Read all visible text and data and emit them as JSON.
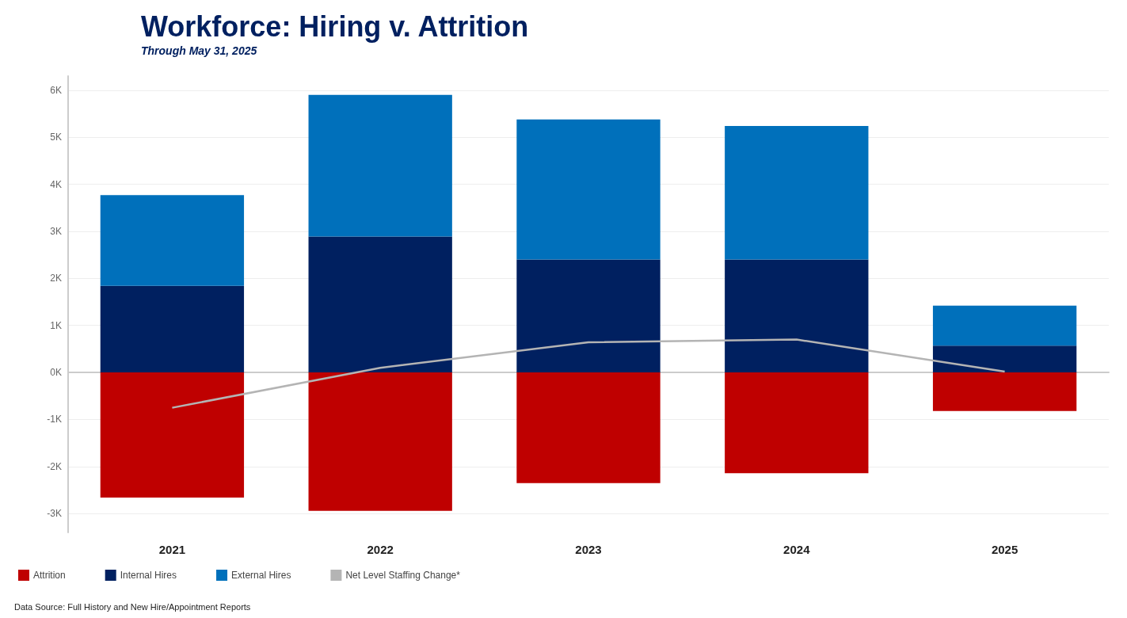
{
  "chart_data": {
    "type": "bar",
    "stacked": true,
    "title": "Workforce: Hiring v. Attrition",
    "subtitle": "Through May 31, 2025",
    "categories": [
      "2021",
      "2022",
      "2023",
      "2024",
      "2025"
    ],
    "series": [
      {
        "name": "Attrition",
        "color": "#bf0000",
        "values": [
          -2660,
          -2940,
          -2350,
          -2140,
          -820
        ]
      },
      {
        "name": "Internal Hires",
        "color": "#002060",
        "values": [
          1840,
          2890,
          2400,
          2400,
          570
        ]
      },
      {
        "name": "External Hires",
        "color": "#0070bb",
        "values": [
          1930,
          3010,
          2980,
          2840,
          850
        ]
      },
      {
        "name": "Net Level Staffing Change*",
        "type": "line",
        "color": "#b4b4b4",
        "values": [
          -750,
          100,
          640,
          700,
          20
        ]
      }
    ],
    "ylim": [
      -3400,
      6300
    ],
    "yticks": [
      {
        "value": -3000,
        "label": "-3K"
      },
      {
        "value": -2000,
        "label": "-2K"
      },
      {
        "value": -1000,
        "label": "-1K"
      },
      {
        "value": 0,
        "label": "0K"
      },
      {
        "value": 1000,
        "label": "1K"
      },
      {
        "value": 2000,
        "label": "2K"
      },
      {
        "value": 3000,
        "label": "3K"
      },
      {
        "value": 4000,
        "label": "4K"
      },
      {
        "value": 5000,
        "label": "5K"
      },
      {
        "value": 6000,
        "label": "6K"
      }
    ],
    "grid": "y",
    "legend": "bottom left",
    "marker": "none",
    "annotations": [
      "Data Source: Full History and New Hire/Appointment Reports"
    ]
  }
}
